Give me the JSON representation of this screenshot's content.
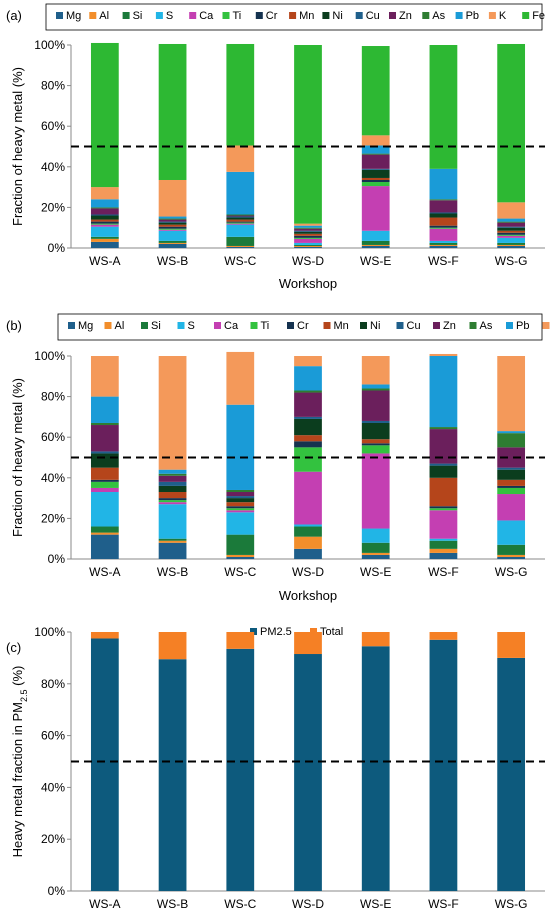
{
  "panels": [
    {
      "panel_label": "(a)",
      "chart_data": {
        "type": "bar",
        "stacked": true,
        "categories": [
          "WS-A",
          "WS-B",
          "WS-C",
          "WS-D",
          "WS-E",
          "WS-F",
          "WS-G"
        ],
        "xlabel": "Workshop",
        "ylabel": "Fraction of heavy metal (%)",
        "ylim": [
          0,
          100
        ],
        "yticks": [
          "0%",
          "20%",
          "40%",
          "60%",
          "80%",
          "100%"
        ],
        "reference_line": 50,
        "legend_position": "top",
        "series": [
          {
            "name": "Mg",
            "color": "#1f5f8b",
            "values": [
              3,
              2,
              0.5,
              0.5,
              1,
              1,
              1
            ]
          },
          {
            "name": "Al",
            "color": "#f28e2b",
            "values": [
              1.5,
              0.5,
              0.5,
              0.5,
              0.5,
              0.5,
              0.5
            ]
          },
          {
            "name": "Si",
            "color": "#1b7a3a",
            "values": [
              1,
              1,
              4.5,
              0.5,
              2,
              1,
              1
            ]
          },
          {
            "name": "S",
            "color": "#21b5e6",
            "values": [
              5,
              5,
              6,
              1,
              5,
              1,
              2.5
            ]
          },
          {
            "name": "Ca",
            "color": "#c43fb2",
            "values": [
              1,
              0.5,
              0.5,
              2,
              22,
              6,
              1
            ]
          },
          {
            "name": "Ti",
            "color": "#33c23f",
            "values": [
              0.5,
              0.5,
              0.5,
              0.5,
              2,
              0.5,
              0.5
            ]
          },
          {
            "name": "Cr",
            "color": "#15324f",
            "values": [
              1,
              1,
              0.5,
              1,
              1,
              1,
              1
            ]
          },
          {
            "name": "Mn",
            "color": "#b5451b",
            "values": [
              1,
              1,
              1,
              1,
              1,
              4,
              1
            ]
          },
          {
            "name": "Ni",
            "color": "#0b3d1e",
            "values": [
              2,
              1,
              1,
              1,
              4,
              2,
              1.5
            ]
          },
          {
            "name": "Cu",
            "color": "#1f5f8b",
            "values": [
              0.5,
              0.5,
              0.5,
              0.5,
              0.5,
              0.5,
              0.5
            ]
          },
          {
            "name": "Zn",
            "color": "#6b1f5c",
            "values": [
              3,
              1,
              0.5,
              1,
              7,
              6,
              2
            ]
          },
          {
            "name": "As",
            "color": "#2e7d32",
            "values": [
              0.5,
              0.5,
              0.5,
              0.5,
              0.5,
              0.5,
              0.5
            ]
          },
          {
            "name": "Pb",
            "color": "#1a9bd7",
            "values": [
              4,
              1,
              21,
              1,
              4,
              15,
              1.5
            ]
          },
          {
            "name": "K",
            "color": "#f4995a",
            "values": [
              6,
              18,
              13,
              1,
              5,
              0,
              8
            ]
          },
          {
            "name": "Fe",
            "color": "#2db833",
            "values": [
              71,
              67,
              50,
              88,
              44,
              61,
              78
            ]
          }
        ]
      }
    },
    {
      "panel_label": "(b)",
      "chart_data": {
        "type": "bar",
        "stacked": true,
        "categories": [
          "WS-A",
          "WS-B",
          "WS-C",
          "WS-D",
          "WS-E",
          "WS-F",
          "WS-G"
        ],
        "xlabel": "Workshop",
        "ylabel": "Fraction of heavy metal (%)",
        "ylim": [
          0,
          100
        ],
        "yticks": [
          "0%",
          "20%",
          "40%",
          "60%",
          "80%",
          "100%"
        ],
        "reference_line": 50,
        "legend_position": "top",
        "series": [
          {
            "name": "Mg",
            "color": "#1f5f8b",
            "values": [
              12,
              8,
              1,
              5,
              2,
              3,
              1
            ]
          },
          {
            "name": "Al",
            "color": "#f28e2b",
            "values": [
              1,
              1,
              1,
              6,
              1,
              2,
              1
            ]
          },
          {
            "name": "Si",
            "color": "#1b7a3a",
            "values": [
              3,
              1,
              10,
              5,
              5,
              4,
              5
            ]
          },
          {
            "name": "S",
            "color": "#21b5e6",
            "values": [
              17,
              17,
              11,
              1,
              7,
              1,
              12
            ]
          },
          {
            "name": "Ca",
            "color": "#c43fb2",
            "values": [
              2,
              1,
              1,
              26,
              37,
              14,
              13
            ]
          },
          {
            "name": "Ti",
            "color": "#33c23f",
            "values": [
              3,
              1,
              1,
              12,
              4,
              1,
              3
            ]
          },
          {
            "name": "Cr",
            "color": "#15324f",
            "values": [
              1,
              1,
              1,
              3,
              1,
              1,
              1
            ]
          },
          {
            "name": "Mn",
            "color": "#b5451b",
            "values": [
              6,
              3,
              2,
              3,
              2,
              14,
              3
            ]
          },
          {
            "name": "Ni",
            "color": "#0b3d1e",
            "values": [
              7,
              3,
              2,
              8,
              8,
              6,
              5
            ]
          },
          {
            "name": "Cu",
            "color": "#1f5f8b",
            "values": [
              1,
              2,
              1,
              1,
              1,
              1,
              1
            ]
          },
          {
            "name": "Zn",
            "color": "#6b1f5c",
            "values": [
              13,
              3,
              2,
              12,
              15,
              17,
              10
            ]
          },
          {
            "name": "As",
            "color": "#2e7d32",
            "values": [
              1,
              1,
              1,
              1,
              1,
              1,
              7
            ]
          },
          {
            "name": "Pb",
            "color": "#1a9bd7",
            "values": [
              13,
              2,
              42,
              12,
              2,
              35,
              1
            ]
          },
          {
            "name": "K",
            "color": "#f4995a",
            "values": [
              20,
              56,
              26,
              5,
              14,
              1,
              37
            ]
          }
        ]
      }
    },
    {
      "panel_label": "(c)",
      "chart_data": {
        "type": "bar",
        "stacked": true,
        "categories": [
          "WS-A",
          "WS-B",
          "WS-C",
          "WS-D",
          "WS-E",
          "WS-F",
          "WS-G"
        ],
        "xlabel": "",
        "ylabel_main": "Heavy metal fraction in PM",
        "ylabel_sub": "2.5",
        "ylabel_suffix": " (%)",
        "ylim": [
          0,
          100
        ],
        "yticks": [
          "0%",
          "20%",
          "40%",
          "60%",
          "80%",
          "100%"
        ],
        "reference_line": 50,
        "legend_position": "top",
        "series": [
          {
            "name": "PM2.5",
            "color": "#0d5a7d",
            "values": [
              97.5,
              89.5,
              93.5,
              91.5,
              94.5,
              97,
              90
            ]
          },
          {
            "name": "Total",
            "color": "#f58025",
            "values": [
              2.5,
              10.5,
              6.5,
              8.5,
              5.5,
              3,
              10
            ]
          }
        ]
      }
    }
  ]
}
